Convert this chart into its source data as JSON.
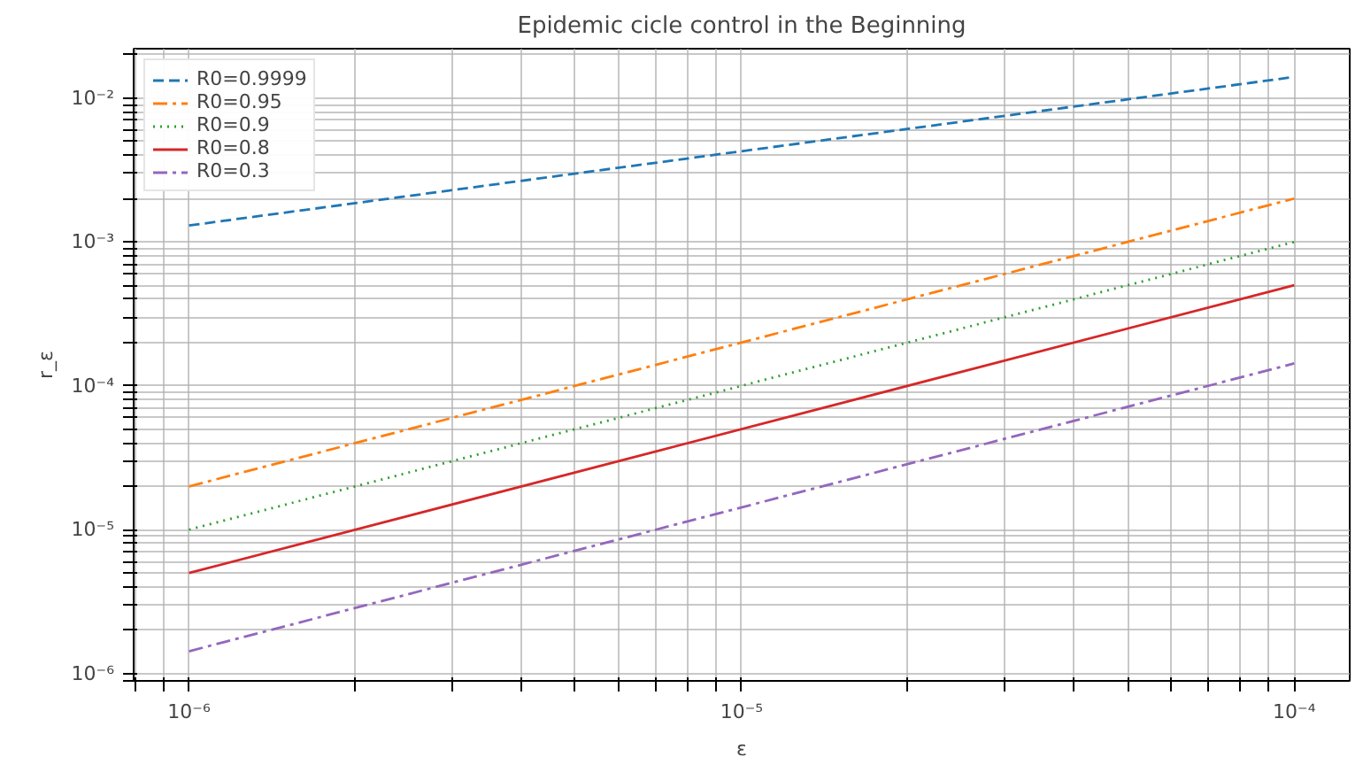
{
  "chart_data": {
    "type": "line",
    "title": "Epidemic cicle control in the Beginning",
    "xlabel": "ε",
    "ylabel": "r_ε",
    "x": [
      1e-06,
      0.0001
    ],
    "series": [
      {
        "name": "R0=0.9999",
        "color": "#1f77b4",
        "line_style": "dashed",
        "values": [
          0.0013,
          0.014
        ]
      },
      {
        "name": "R0=0.95",
        "color": "#ff7f0e",
        "line_style": "dashdot",
        "values": [
          2e-05,
          0.002
        ]
      },
      {
        "name": "R0=0.9",
        "color": "#2ca02c",
        "line_style": "dotted",
        "values": [
          1e-05,
          0.001
        ]
      },
      {
        "name": "R0=0.8",
        "color": "#d62728",
        "line_style": "solid",
        "values": [
          5e-06,
          0.0005
        ]
      },
      {
        "name": "R0=0.3",
        "color": "#9467bd",
        "line_style": "dashdot",
        "values": [
          1.43e-06,
          0.000143
        ]
      }
    ],
    "log": "xy",
    "grid": true,
    "legend": "top left",
    "marker": "none",
    "xlim": [
      7.94e-07,
      0.000126
    ],
    "ylim": [
      8.9e-07,
      0.022
    ],
    "xticks": [
      {
        "value": 8e-07,
        "label": null
      },
      {
        "value": 9e-07,
        "label": null
      },
      {
        "value": 1e-06,
        "label": "10⁻⁶"
      },
      {
        "value": 2e-06,
        "label": null
      },
      {
        "value": 3e-06,
        "label": null
      },
      {
        "value": 4e-06,
        "label": null
      },
      {
        "value": 5e-06,
        "label": null
      },
      {
        "value": 6e-06,
        "label": null
      },
      {
        "value": 7e-06,
        "label": null
      },
      {
        "value": 8e-06,
        "label": null
      },
      {
        "value": 9e-06,
        "label": null
      },
      {
        "value": 1e-05,
        "label": "10⁻⁵"
      },
      {
        "value": 2e-05,
        "label": null
      },
      {
        "value": 3e-05,
        "label": null
      },
      {
        "value": 4e-05,
        "label": null
      },
      {
        "value": 5e-05,
        "label": null
      },
      {
        "value": 6e-05,
        "label": null
      },
      {
        "value": 7e-05,
        "label": null
      },
      {
        "value": 8e-05,
        "label": null
      },
      {
        "value": 9e-05,
        "label": null
      },
      {
        "value": 0.0001,
        "label": "10⁻⁴"
      }
    ],
    "yticks": [
      {
        "value": 9e-07,
        "label": null
      },
      {
        "value": 1e-06,
        "label": "10⁻⁶"
      },
      {
        "value": 2e-06,
        "label": null
      },
      {
        "value": 3e-06,
        "label": null
      },
      {
        "value": 4e-06,
        "label": null
      },
      {
        "value": 5e-06,
        "label": null
      },
      {
        "value": 6e-06,
        "label": null
      },
      {
        "value": 7e-06,
        "label": null
      },
      {
        "value": 8e-06,
        "label": null
      },
      {
        "value": 9e-06,
        "label": null
      },
      {
        "value": 1e-05,
        "label": "10⁻⁵"
      },
      {
        "value": 2e-05,
        "label": null
      },
      {
        "value": 3e-05,
        "label": null
      },
      {
        "value": 4e-05,
        "label": null
      },
      {
        "value": 5e-05,
        "label": null
      },
      {
        "value": 6e-05,
        "label": null
      },
      {
        "value": 7e-05,
        "label": null
      },
      {
        "value": 8e-05,
        "label": null
      },
      {
        "value": 9e-05,
        "label": null
      },
      {
        "value": 0.0001,
        "label": "10⁻⁴"
      },
      {
        "value": 0.0002,
        "label": null
      },
      {
        "value": 0.0003,
        "label": null
      },
      {
        "value": 0.0004,
        "label": null
      },
      {
        "value": 0.0005,
        "label": null
      },
      {
        "value": 0.0006,
        "label": null
      },
      {
        "value": 0.0007,
        "label": null
      },
      {
        "value": 0.0008,
        "label": null
      },
      {
        "value": 0.0009,
        "label": null
      },
      {
        "value": 0.001,
        "label": "10⁻³"
      },
      {
        "value": 0.002,
        "label": null
      },
      {
        "value": 0.003,
        "label": null
      },
      {
        "value": 0.004,
        "label": null
      },
      {
        "value": 0.005,
        "label": null
      },
      {
        "value": 0.006,
        "label": null
      },
      {
        "value": 0.007,
        "label": null
      },
      {
        "value": 0.008,
        "label": null
      },
      {
        "value": 0.009,
        "label": null
      },
      {
        "value": 0.01,
        "label": "10⁻²"
      },
      {
        "value": 0.02,
        "label": null
      }
    ]
  }
}
